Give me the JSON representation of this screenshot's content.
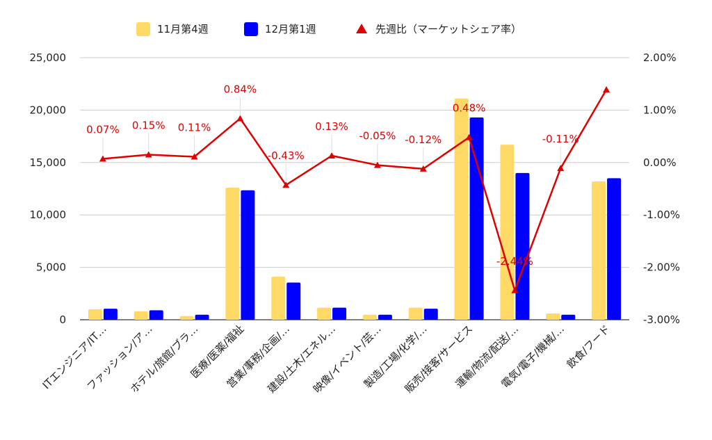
{
  "chart_data": {
    "type": "bar",
    "categories": [
      "ITエンジニア/IT…",
      "ファッション/ア…",
      "ホテル/旅館/ブラ…",
      "医療/医薬/福祉",
      "営業/事務/企画/…",
      "建設/土木/エネル…",
      "映像/イベント/芸…",
      "製造/工場/化学/…",
      "販売/接客/サービス",
      "運輸/物流/配送/…",
      "電気/電子/機械/…",
      "飲食/フード"
    ],
    "series": [
      {
        "name": "11月第4週",
        "type": "bar",
        "axis": "left",
        "color": "#FFD966",
        "values": [
          1000,
          800,
          350,
          12600,
          4100,
          1150,
          480,
          1150,
          21100,
          16700,
          600,
          13200
        ]
      },
      {
        "name": "12月第1週",
        "type": "bar",
        "axis": "left",
        "color": "#0000FF",
        "values": [
          1050,
          900,
          480,
          12350,
          3550,
          1150,
          480,
          1050,
          19300,
          14000,
          480,
          13500
        ]
      },
      {
        "name": "先週比（マーケットシェア率）",
        "type": "line",
        "axis": "right",
        "color": "#E00000",
        "marker": "triangle",
        "values": [
          0.07,
          0.15,
          0.11,
          0.84,
          -0.43,
          0.13,
          -0.05,
          -0.12,
          0.48,
          -2.44,
          -0.11,
          1.39
        ],
        "labels": [
          "0.07%",
          "0.15%",
          "0.11%",
          "0.84%",
          "-0.43%",
          "0.13%",
          "-0.05%",
          "-0.12%",
          "0.48%",
          "-2.44%",
          "-0.11%",
          ""
        ]
      }
    ],
    "y_left": {
      "min": 0,
      "max": 25000,
      "ticks": [
        0,
        5000,
        10000,
        15000,
        20000,
        25000
      ],
      "tick_labels": [
        "0",
        "5,000",
        "10,000",
        "15,000",
        "20,000",
        "25,000"
      ]
    },
    "y_right": {
      "min": -3,
      "max": 2,
      "ticks": [
        -3,
        -2,
        -1,
        0,
        1,
        2
      ],
      "tick_labels": [
        "-3.00%",
        "-2.00%",
        "-1.00%",
        "0.00%",
        "1.00%",
        "2.00%"
      ]
    },
    "gridlines": true,
    "legend_position": "top-center"
  }
}
